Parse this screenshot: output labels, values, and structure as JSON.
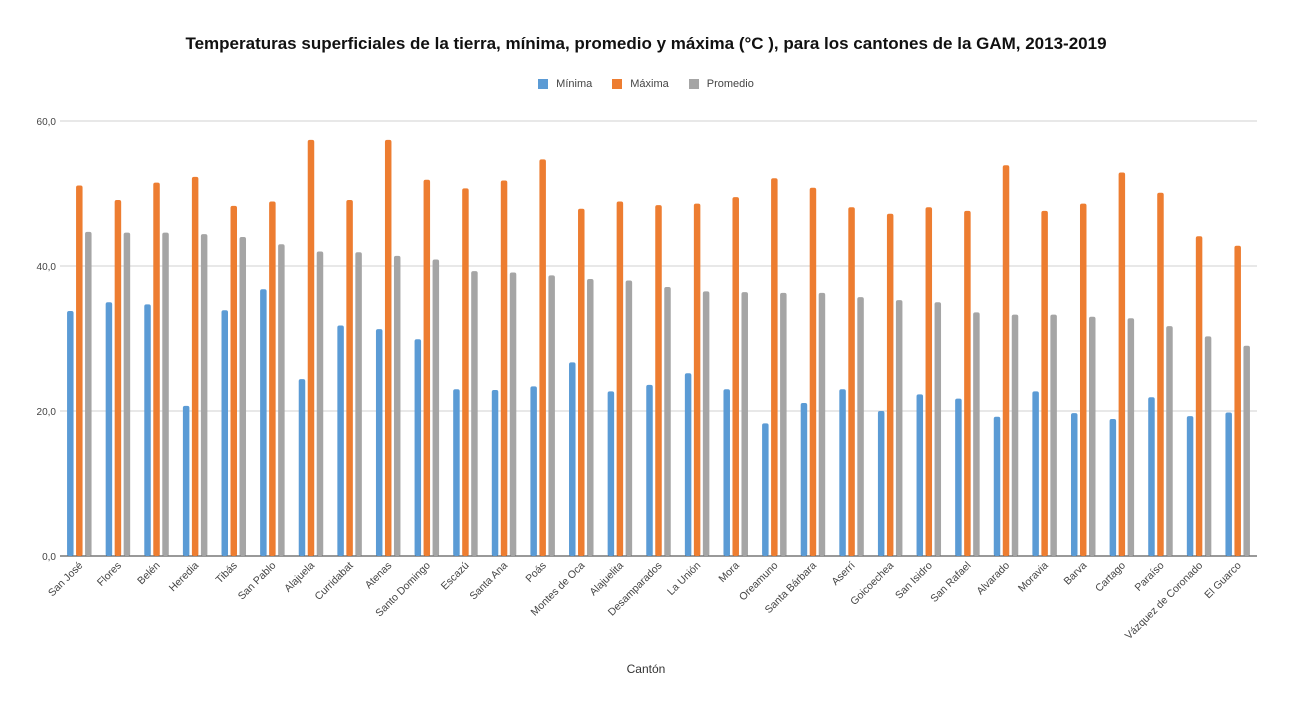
{
  "chart_data": {
    "type": "bar",
    "title": "Temperaturas superficiales de la tierra, mínima, promedio y máxima (°C ), para los cantones de la GAM, 2013-2019",
    "xlabel": "Cantón",
    "ylabel": "",
    "ylim": [
      0,
      60
    ],
    "yticks": [
      "0,0",
      "20,0",
      "40,0",
      "60,0"
    ],
    "ytick_values": [
      0,
      20,
      40,
      60
    ],
    "grid": true,
    "legend_position": "top",
    "categories": [
      "San José",
      "Flores",
      "Belén",
      "Heredia",
      "Tibás",
      "San Pablo",
      "Alajuela",
      "Curridabat",
      "Atenas",
      "Santo Domingo",
      "Escazú",
      "Santa Ana",
      "Poás",
      "Montes de Oca",
      "Alajuelita",
      "Desamparados",
      "La Unión",
      "Mora",
      "Oreamuno",
      "Santa Bárbara",
      "Aserrí",
      "Goicoechea",
      "San Isidro",
      "San Rafael",
      "Alvarado",
      "Moravia",
      "Barva",
      "Cartago",
      "Paraíso",
      "Vázquez de Coronado",
      "El Guarco"
    ],
    "series": [
      {
        "name": "Mínima",
        "color": "#5b9bd5",
        "values": [
          33.8,
          35.0,
          34.7,
          20.7,
          33.9,
          36.8,
          24.4,
          31.8,
          31.3,
          29.9,
          23.0,
          22.9,
          23.4,
          26.7,
          22.7,
          23.6,
          25.2,
          23.0,
          18.3,
          21.1,
          23.0,
          20.0,
          22.3,
          21.7,
          19.2,
          22.7,
          19.7,
          18.9,
          21.9,
          19.3,
          19.8
        ]
      },
      {
        "name": "Máxima",
        "color": "#ed7d31",
        "values": [
          51.1,
          49.1,
          51.5,
          52.3,
          48.3,
          48.9,
          57.4,
          49.1,
          57.4,
          51.9,
          50.7,
          51.8,
          54.7,
          47.9,
          48.9,
          48.4,
          48.6,
          49.5,
          52.1,
          50.8,
          48.1,
          47.2,
          48.1,
          47.6,
          53.9,
          47.6,
          48.6,
          52.9,
          50.1,
          44.1,
          42.8
        ]
      },
      {
        "name": "Promedio",
        "color": "#a5a5a5",
        "values": [
          44.7,
          44.6,
          44.6,
          44.4,
          44.0,
          43.0,
          42.0,
          41.9,
          41.4,
          40.9,
          39.3,
          39.1,
          38.7,
          38.2,
          38.0,
          37.1,
          36.5,
          36.4,
          36.3,
          36.3,
          35.7,
          35.3,
          35.0,
          33.6,
          33.3,
          33.3,
          33.0,
          32.8,
          31.7,
          30.3,
          29.0
        ]
      }
    ]
  }
}
